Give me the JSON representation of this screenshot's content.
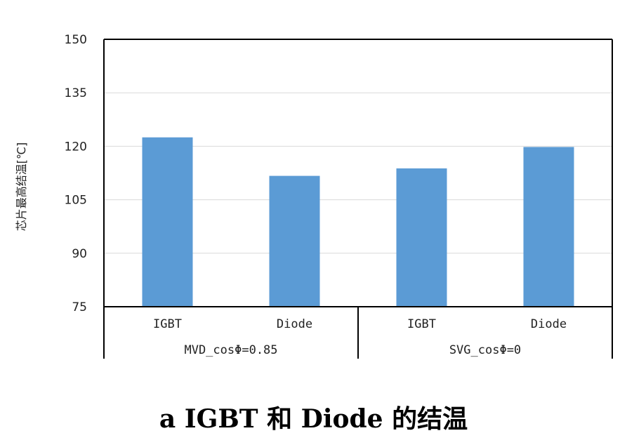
{
  "chart_data": {
    "type": "bar",
    "ylabel": "芯片最高结温[℃]",
    "ylim": [
      75,
      150
    ],
    "yticks": [
      75,
      90,
      105,
      120,
      135,
      150
    ],
    "grid": true,
    "bar_color": "#5B9BD5",
    "groups": [
      {
        "label": "MVD_cosΦ=0.85",
        "categories": [
          "IGBT",
          "Diode"
        ],
        "values": [
          122.5,
          111.7
        ]
      },
      {
        "label": "SVG_cosΦ=0",
        "categories": [
          "IGBT",
          "Diode"
        ],
        "values": [
          113.8,
          119.8
        ]
      }
    ]
  },
  "caption": "a IGBT 和 Diode 的结温"
}
